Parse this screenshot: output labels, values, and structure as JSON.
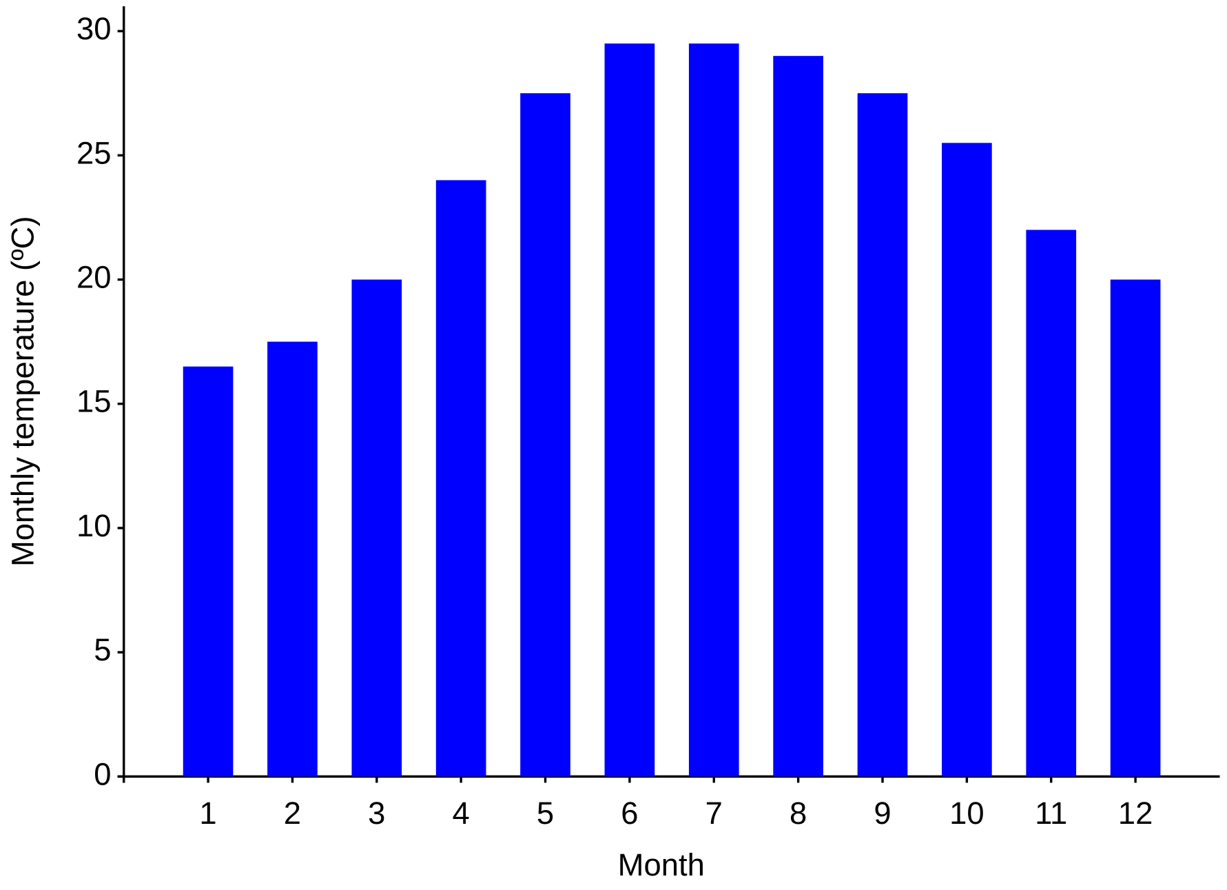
{
  "chart_data": {
    "type": "bar",
    "x_label": "Month",
    "y_label": "Monthly temperature (ºC)",
    "categories": [
      "1",
      "2",
      "3",
      "4",
      "5",
      "6",
      "7",
      "8",
      "9",
      "10",
      "11",
      "12"
    ],
    "values": [
      16.5,
      17.5,
      20,
      24,
      27.5,
      29.5,
      29.5,
      29,
      27.5,
      25.5,
      22,
      20
    ],
    "color": "#0000ff",
    "ylim": [
      0,
      31
    ],
    "yticks": [
      0,
      5,
      10,
      15,
      20,
      25,
      30
    ],
    "grid": false
  }
}
